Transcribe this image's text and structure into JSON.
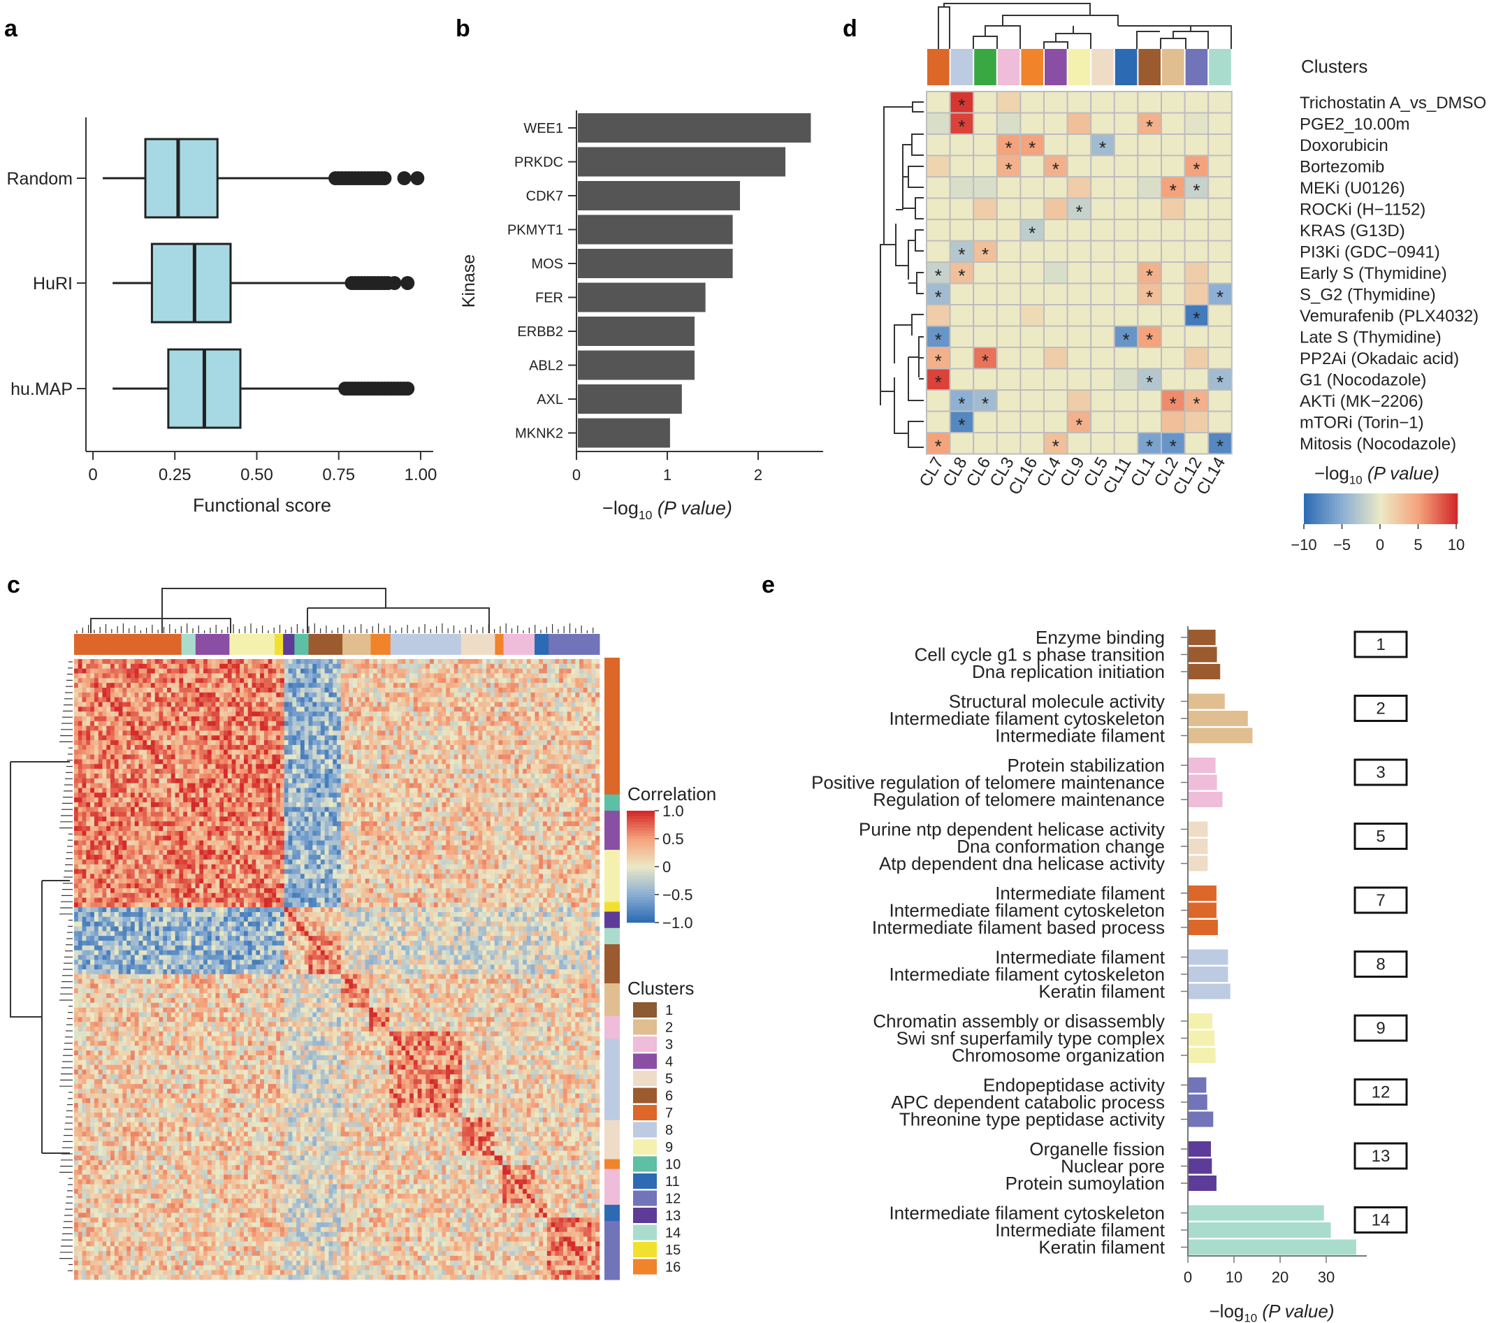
{
  "panels": {
    "a": "a",
    "b": "b",
    "c": "c",
    "d": "d",
    "e": "e"
  },
  "chart_data": [
    {
      "panel": "a",
      "type": "box",
      "categories": [
        "Random",
        "HuRI",
        "hu.MAP"
      ],
      "xlabel": "Functional score",
      "xlim": [
        0,
        1.0
      ],
      "xticks": [
        "0",
        "0.25",
        "0.50",
        "0.75",
        "1.00"
      ],
      "xtick_values": [
        0,
        0.25,
        0.5,
        0.75,
        1.0
      ],
      "box_color": "#a6d9e3",
      "boxes": [
        {
          "name": "Random",
          "whisker_low": 0.03,
          "q1": 0.16,
          "median": 0.26,
          "q3": 0.38,
          "whisker_high": 0.72,
          "outliers": [
            0.74,
            0.75,
            0.76,
            0.77,
            0.78,
            0.79,
            0.8,
            0.81,
            0.82,
            0.83,
            0.84,
            0.85,
            0.86,
            0.87,
            0.88,
            0.89,
            0.95,
            0.99
          ]
        },
        {
          "name": "HuRI",
          "whisker_low": 0.06,
          "q1": 0.18,
          "median": 0.31,
          "q3": 0.42,
          "whisker_high": 0.77,
          "outliers": [
            0.79,
            0.8,
            0.81,
            0.82,
            0.83,
            0.84,
            0.85,
            0.86,
            0.87,
            0.88,
            0.89,
            0.9,
            0.92,
            0.96
          ]
        },
        {
          "name": "hu.MAP",
          "whisker_low": 0.06,
          "q1": 0.23,
          "median": 0.34,
          "q3": 0.45,
          "whisker_high": 0.75,
          "outliers": [
            0.77,
            0.78,
            0.79,
            0.8,
            0.81,
            0.82,
            0.83,
            0.84,
            0.85,
            0.86,
            0.87,
            0.88,
            0.89,
            0.9,
            0.91,
            0.92,
            0.93,
            0.94,
            0.95,
            0.96
          ]
        }
      ]
    },
    {
      "panel": "b",
      "type": "bar",
      "orientation": "horizontal",
      "categories": [
        "WEE1",
        "PRKDC",
        "CDK7",
        "PKMYT1",
        "MOS",
        "FER",
        "ERBB2",
        "ABL2",
        "AXL",
        "MKNK2"
      ],
      "values": [
        2.58,
        2.3,
        1.8,
        1.72,
        1.72,
        1.42,
        1.3,
        1.3,
        1.16,
        1.03
      ],
      "ylabel": "Kinase",
      "xlabel_prefix": "−log",
      "xlabel_sub": "10",
      "xlabel_suffix": "(P value)",
      "xlim": [
        0,
        2.7
      ],
      "xticks": [
        "0",
        "1",
        "2"
      ],
      "xtick_values": [
        0,
        1,
        2
      ],
      "bar_color": "#555555"
    },
    {
      "panel": "c",
      "type": "heatmap",
      "legend_title": "Correlation",
      "color_range": [
        -1.0,
        1.0
      ],
      "colorbar_ticks": [
        "1.0",
        "0.5",
        "0",
        "−0.5",
        "−1.0"
      ],
      "colorbar_values": [
        1.0,
        0.5,
        0,
        -0.5,
        -1.0
      ],
      "clusters_title": "Clusters",
      "cluster_labels": [
        "1",
        "2",
        "3",
        "4",
        "5",
        "6",
        "7",
        "8",
        "9",
        "10",
        "11",
        "12",
        "13",
        "14",
        "15",
        "16"
      ],
      "cluster_colors": [
        "#8c5a33",
        "#e0be8f",
        "#efbcd9",
        "#8a4fa4",
        "#efdcc7",
        "#9c5a2f",
        "#dc6728",
        "#bccbe2",
        "#f3f1ad",
        "#5dbfa4",
        "#2c6bb3",
        "#7274b9",
        "#5c3c98",
        "#a9dccc",
        "#f2e02e",
        "#f1832a"
      ],
      "top_bar_order": [
        7,
        14,
        4,
        9,
        15,
        13,
        10,
        6,
        2,
        16,
        8,
        5,
        16,
        3,
        11,
        12
      ],
      "top_bar_widths": [
        19,
        2.5,
        6,
        8,
        1.5,
        2,
        2.5,
        6,
        5,
        3.5,
        12.5,
        6,
        1.5,
        5.5,
        2.5,
        9
      ],
      "side_bar_order": [
        7,
        10,
        4,
        9,
        15,
        13,
        14,
        6,
        2,
        3,
        8,
        5,
        16,
        3,
        11,
        12
      ],
      "side_bar_heights": [
        21,
        2.5,
        6,
        8,
        1.5,
        2.5,
        2.5,
        6,
        5,
        3.5,
        12.5,
        6,
        1.5,
        5.5,
        2.5,
        9
      ]
    },
    {
      "panel": "d",
      "type": "heatmap",
      "columns": [
        "CL7",
        "CL8",
        "CL6",
        "CL3",
        "CL16",
        "CL4",
        "CL9",
        "CL5",
        "CL11",
        "CL1",
        "CL2",
        "CL12",
        "CL14"
      ],
      "column_colors": [
        "#dc6728",
        "#bccbe2",
        "#3aa842",
        "#efbcd9",
        "#f1832a",
        "#8a4fa4",
        "#f3f1ad",
        "#efdcc7",
        "#2c6bb3",
        "#9c5a2f",
        "#e0be8f",
        "#7274b9",
        "#a9dccc"
      ],
      "rows": [
        "Trichostatin A_vs_DMSO",
        "PGE2_10.00m",
        "Doxorubicin",
        "Bortezomib",
        "MEKi (U0126)",
        "ROCKi (H−1152)",
        "KRAS (G13D)",
        "PI3Ki (GDC−0941)",
        "Early S (Thymidine)",
        "S_G2 (Thymidine)",
        "Vemurafenib (PLX4032)",
        "Late S (Thymidine)",
        "PP2Ai (Okadaic acid)",
        "G1 (Nocodazole)",
        "AKTi (MK−2206)",
        "mTORi (Torin−1)",
        "Mitosis (Nocodazole)"
      ],
      "values": [
        [
          0,
          9.5,
          0,
          1.5,
          0,
          0,
          0,
          0,
          0,
          0,
          0,
          0,
          0
        ],
        [
          -1,
          9,
          0,
          -1,
          0,
          0,
          3,
          0,
          0,
          4,
          0,
          -0.5,
          0
        ],
        [
          0,
          0,
          0,
          5,
          5,
          0,
          0,
          -4,
          0,
          0,
          0,
          0,
          0
        ],
        [
          1.5,
          0,
          0,
          4,
          0,
          4,
          0,
          0,
          0,
          0,
          0,
          5,
          0
        ],
        [
          0,
          -1,
          -1,
          0,
          0,
          0,
          2,
          0,
          0,
          -1,
          5,
          -2,
          0
        ],
        [
          0,
          0,
          2,
          0,
          0,
          2.5,
          -2,
          0,
          0,
          0,
          2,
          0,
          0
        ],
        [
          0,
          0,
          0,
          0,
          -2.5,
          0,
          0,
          0,
          0,
          0,
          0,
          0,
          0
        ],
        [
          0,
          -3,
          3,
          0,
          0,
          0,
          0,
          0,
          0,
          0,
          0,
          0,
          0
        ],
        [
          -2,
          3,
          0,
          0,
          0,
          -1,
          0,
          0,
          0,
          4,
          0,
          2,
          0
        ],
        [
          -4,
          0,
          0,
          0,
          0,
          0,
          0,
          0,
          0,
          3,
          0,
          2,
          -5
        ],
        [
          2,
          0,
          0,
          0,
          1,
          0,
          0,
          0,
          0,
          0,
          0,
          -9,
          0
        ],
        [
          -7,
          0,
          0,
          0,
          0,
          0,
          0,
          0,
          -7,
          5,
          0,
          0,
          0
        ],
        [
          4,
          0,
          7,
          0,
          0,
          2,
          0,
          0,
          0,
          0,
          0,
          2,
          0
        ],
        [
          9,
          0,
          0,
          0,
          0,
          0,
          0,
          0,
          -1,
          -3,
          0,
          0,
          -4
        ],
        [
          0,
          -5,
          -4,
          0,
          0,
          0,
          2,
          0,
          0,
          0,
          6,
          4,
          0
        ],
        [
          0,
          -8,
          0,
          0,
          0,
          0,
          4,
          0,
          0,
          0,
          3,
          2,
          0
        ],
        [
          5,
          0,
          0,
          0,
          0,
          3,
          0,
          0,
          0,
          -6,
          -7,
          0,
          -8
        ]
      ],
      "significant": [
        [
          0,
          1
        ],
        [
          1,
          1
        ],
        [
          1,
          9
        ],
        [
          2,
          3
        ],
        [
          2,
          4
        ],
        [
          2,
          7
        ],
        [
          3,
          3
        ],
        [
          3,
          5
        ],
        [
          3,
          11
        ],
        [
          4,
          10
        ],
        [
          4,
          11
        ],
        [
          5,
          6
        ],
        [
          6,
          4
        ],
        [
          7,
          1
        ],
        [
          7,
          2
        ],
        [
          8,
          0
        ],
        [
          8,
          1
        ],
        [
          8,
          9
        ],
        [
          9,
          0
        ],
        [
          9,
          9
        ],
        [
          9,
          12
        ],
        [
          10,
          11
        ],
        [
          11,
          0
        ],
        [
          11,
          8
        ],
        [
          11,
          9
        ],
        [
          12,
          0
        ],
        [
          12,
          2
        ],
        [
          13,
          0
        ],
        [
          13,
          9
        ],
        [
          13,
          12
        ],
        [
          14,
          1
        ],
        [
          14,
          2
        ],
        [
          14,
          10
        ],
        [
          14,
          11
        ],
        [
          15,
          1
        ],
        [
          15,
          6
        ],
        [
          16,
          0
        ],
        [
          16,
          5
        ],
        [
          16,
          9
        ],
        [
          16,
          10
        ],
        [
          16,
          12
        ]
      ],
      "legend_top_label": "Clusters",
      "colorbar_title_prefix": "−log",
      "colorbar_title_sub": "10",
      "colorbar_title_suffix": "(P value)",
      "color_range": [
        -10,
        10
      ],
      "colorbar_ticks": [
        "−10",
        "−5",
        "0",
        "5",
        "10"
      ],
      "colorbar_values": [
        -10,
        -5,
        0,
        5,
        10
      ]
    },
    {
      "panel": "e",
      "type": "bar",
      "orientation": "horizontal",
      "groups": [
        {
          "cluster": "1",
          "color": "#9c5a2f",
          "terms": [
            "Enzyme binding",
            "Cell cycle g1 s phase transition",
            "Dna replication initiation"
          ],
          "values": [
            6,
            6.3,
            7
          ]
        },
        {
          "cluster": "2",
          "color": "#e0be8f",
          "terms": [
            "Structural molecule activity",
            "Intermediate filament cytoskeleton",
            "Intermediate filament"
          ],
          "values": [
            8,
            13,
            14
          ]
        },
        {
          "cluster": "3",
          "color": "#efbcd9",
          "terms": [
            "Protein stabilization",
            "Positive regulation of telomere maintenance",
            "Regulation of telomere maintenance"
          ],
          "values": [
            6,
            6.3,
            7.5
          ]
        },
        {
          "cluster": "5",
          "color": "#efdcc7",
          "terms": [
            "Purine ntp dependent helicase activity",
            "Dna conformation change",
            "Atp dependent dna helicase activity"
          ],
          "values": [
            4.3,
            4.3,
            4.3
          ]
        },
        {
          "cluster": "7",
          "color": "#dc6728",
          "terms": [
            "Intermediate filament",
            "Intermediate filament cytoskeleton",
            "Intermediate filament based process"
          ],
          "values": [
            6.2,
            6.2,
            6.5
          ]
        },
        {
          "cluster": "8",
          "color": "#bccbe2",
          "terms": [
            "Intermediate filament",
            "Intermediate filament cytoskeleton",
            "Keratin filament"
          ],
          "values": [
            8.7,
            8.7,
            9.2
          ]
        },
        {
          "cluster": "9",
          "color": "#f3f1ad",
          "terms": [
            "Chromatin assembly or disassembly",
            "Swi snf superfamily type complex",
            "Chromosome organization"
          ],
          "values": [
            5.3,
            5.8,
            6
          ]
        },
        {
          "cluster": "12",
          "color": "#7274b9",
          "terms": [
            "Endopeptidase activity",
            "APC dependent catabolic process",
            "Threonine type peptidase activity"
          ],
          "values": [
            4,
            4.2,
            5.5
          ]
        },
        {
          "cluster": "13",
          "color": "#5c3c98",
          "terms": [
            "Organelle fission",
            "Nuclear pore",
            "Protein sumoylation"
          ],
          "values": [
            5,
            5.2,
            6.2
          ]
        },
        {
          "cluster": "14",
          "color": "#a9dccc",
          "terms": [
            "Intermediate filament cytoskeleton",
            "Intermediate filament",
            "Keratin filament"
          ],
          "values": [
            29.5,
            31,
            36.5
          ]
        }
      ],
      "xlabel_prefix": "−log",
      "xlabel_sub": "10",
      "xlabel_suffix": "(P value)",
      "xlim": [
        0,
        37
      ],
      "xticks": [
        "0",
        "10",
        "20",
        "30"
      ],
      "xtick_values": [
        0,
        10,
        20,
        30
      ]
    }
  ]
}
